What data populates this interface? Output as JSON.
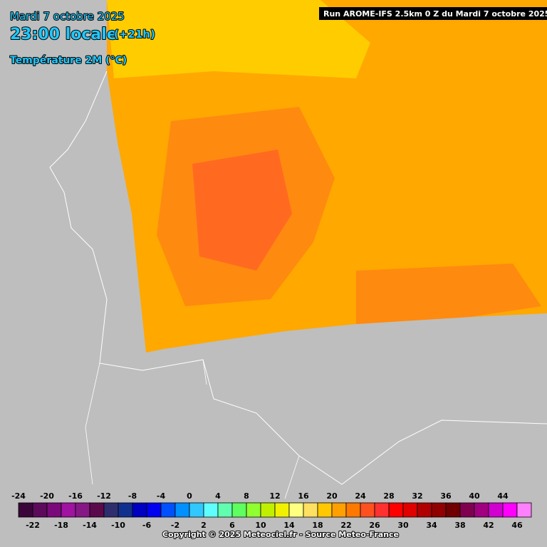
{
  "header": {
    "date": "Mardi 7 octobre 2025",
    "time": "23:00 locale",
    "offset": "(+21h)",
    "variable": "Température 2M (°C)",
    "run": "Run AROME-IFS 2.5km 0 Z du Mardi 7 octobre 2025"
  },
  "legend": {
    "ticks": [
      -24,
      -22,
      -20,
      -18,
      -16,
      -14,
      -12,
      -10,
      -8,
      -6,
      -4,
      -2,
      0,
      2,
      4,
      6,
      8,
      10,
      12,
      14,
      16,
      18,
      20,
      22,
      24,
      26,
      28,
      30,
      32,
      34,
      36,
      38,
      40,
      42,
      44,
      46
    ],
    "colors": [
      "#3a063a",
      "#5c0a5c",
      "#7a0a7a",
      "#a012a0",
      "#861886",
      "#5a0a4a",
      "#2e2e6e",
      "#10308e",
      "#0000c0",
      "#0000f0",
      "#0050ff",
      "#0090ff",
      "#30c8ff",
      "#60ffff",
      "#60ffb0",
      "#60ff60",
      "#90ff30",
      "#c0f000",
      "#f0f000",
      "#ffff80",
      "#ffe060",
      "#ffc800",
      "#ffa000",
      "#ff7800",
      "#ff5020",
      "#ff3030",
      "#ff0000",
      "#e00000",
      "#b00000",
      "#900000",
      "#700000",
      "#800050",
      "#a00080",
      "#d000d0",
      "#ff00ff",
      "#ff80ff"
    ]
  },
  "footer": {
    "copyright": "Copyright © 2025 Meteociel.fr - Source Meteo-France"
  }
}
